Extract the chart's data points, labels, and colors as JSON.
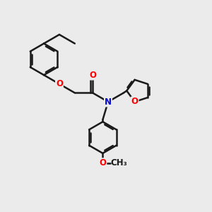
{
  "bg_color": "#ebebeb",
  "bond_color": "#1a1a1a",
  "bond_width": 1.8,
  "atom_colors": {
    "O": "#ff0000",
    "N": "#0000cc",
    "C": "#1a1a1a"
  },
  "font_size": 8.5,
  "fig_size": [
    3.0,
    3.0
  ],
  "dpi": 100
}
